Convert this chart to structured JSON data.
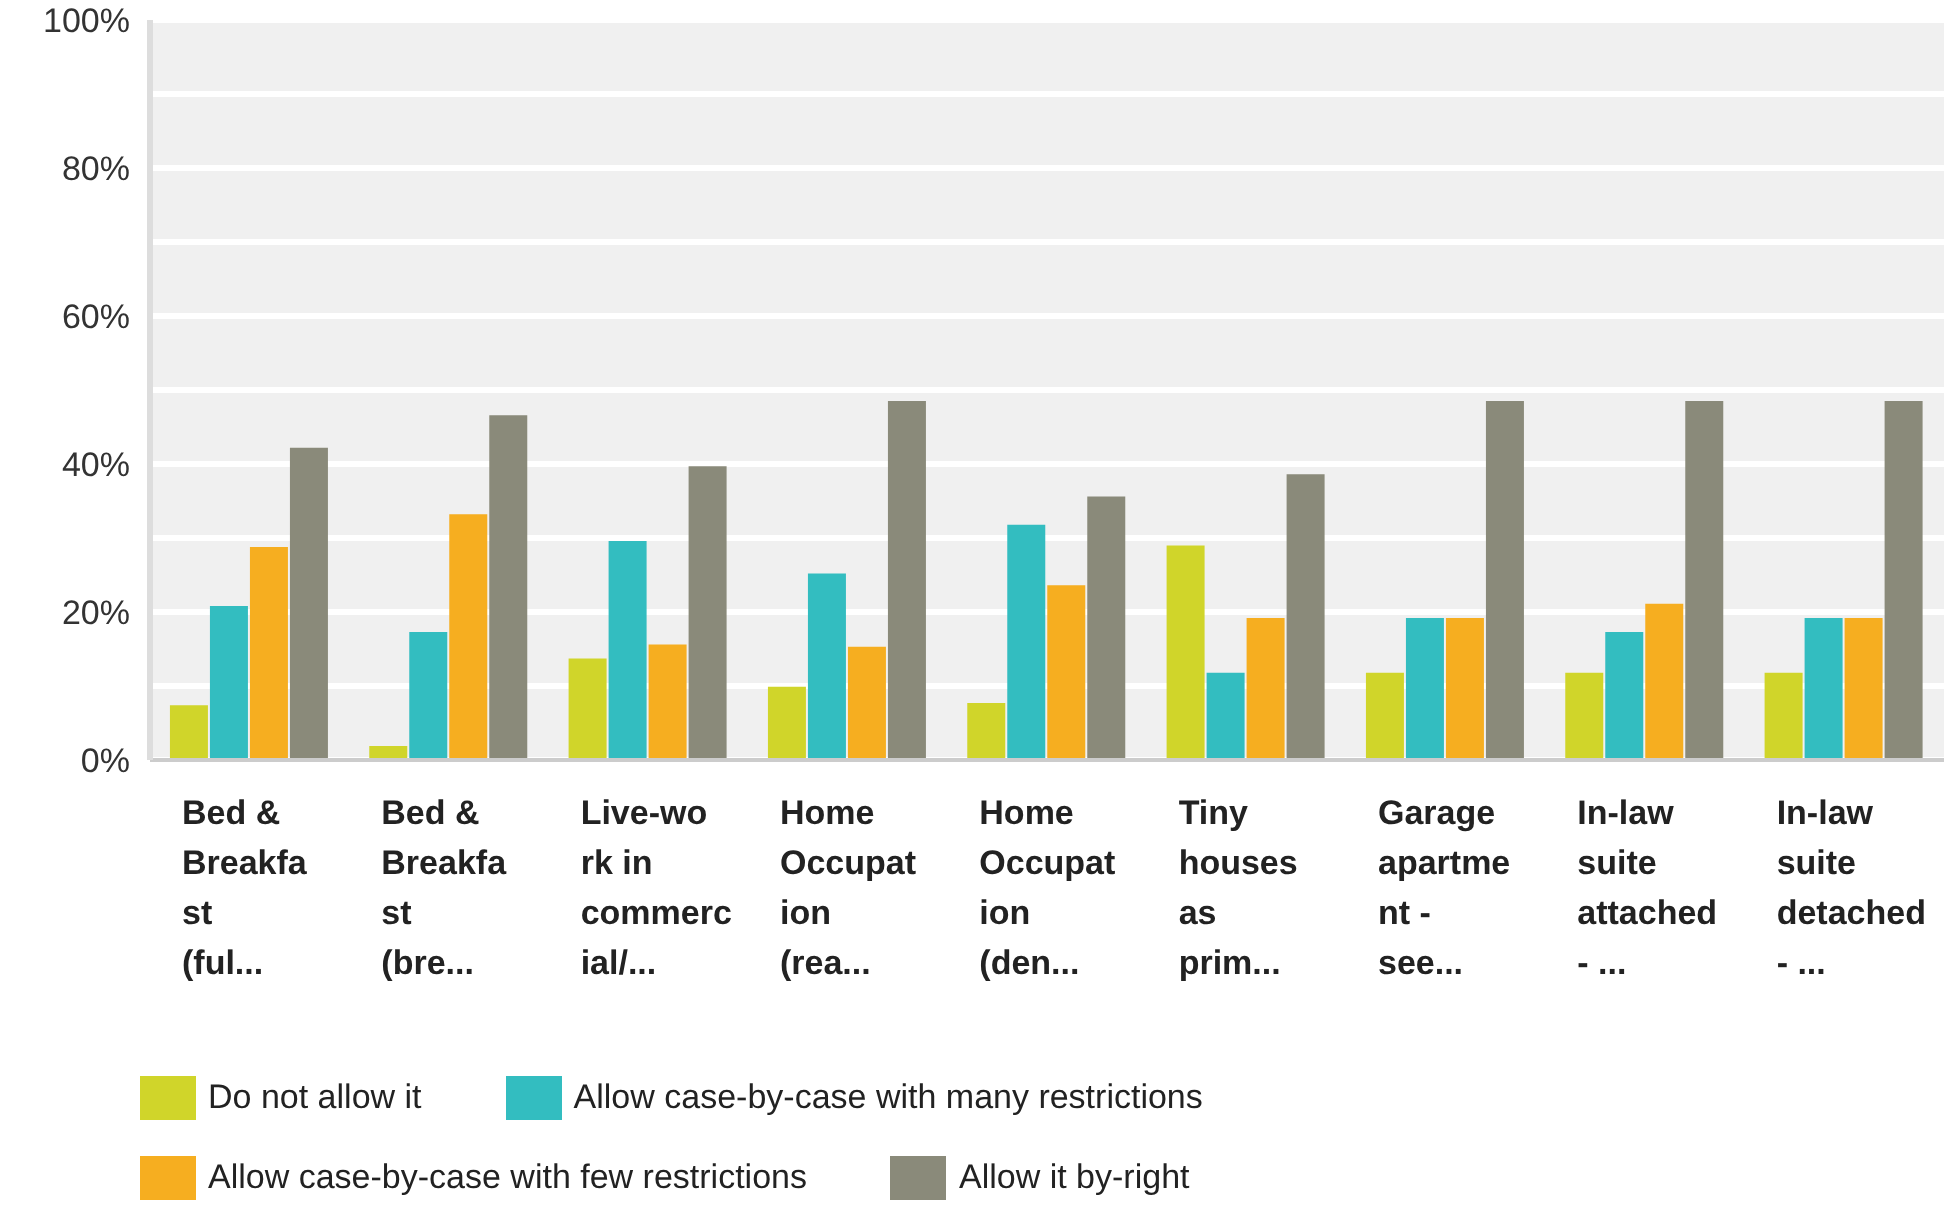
{
  "chart_data": {
    "type": "bar",
    "categories": [
      "Bed & Breakfast (ful...",
      "Bed & Breakfast (bre...",
      "Live-work in commercial/...",
      "Home Occupation (rea...",
      "Home Occupation (den...",
      "Tiny houses as prim...",
      "Garage apartment - see...",
      "In-law suite attached - ...",
      "In-law suite detached - ..."
    ],
    "series": [
      {
        "name": "Do not allow it",
        "color": "#d0d52a",
        "values": [
          7.4,
          1.9,
          13.7,
          9.9,
          7.7,
          29.0,
          11.8,
          11.8,
          11.8
        ]
      },
      {
        "name": "Allow case-by-case with many restrictions",
        "color": "#33bdc0",
        "values": [
          20.8,
          17.3,
          29.6,
          25.2,
          31.8,
          11.8,
          19.2,
          17.3,
          19.2
        ]
      },
      {
        "name": "Allow case-by-case with few restrictions",
        "color": "#f6ae20",
        "values": [
          28.8,
          33.2,
          15.6,
          15.3,
          23.6,
          19.2,
          19.2,
          21.1,
          19.2
        ]
      },
      {
        "name": "Allow it by-right",
        "color": "#8a8a7a",
        "values": [
          42.2,
          46.6,
          39.7,
          48.5,
          35.6,
          38.6,
          48.5,
          48.5,
          48.5
        ]
      }
    ],
    "ylim": [
      0,
      100
    ],
    "yticks": [
      {
        "value": 0,
        "label": "0%"
      },
      {
        "value": 10,
        "label": null
      },
      {
        "value": 20,
        "label": "20%"
      },
      {
        "value": 30,
        "label": null
      },
      {
        "value": 40,
        "label": "40%"
      },
      {
        "value": 50,
        "label": null
      },
      {
        "value": 60,
        "label": "60%"
      },
      {
        "value": 70,
        "label": null
      },
      {
        "value": 80,
        "label": "80%"
      },
      {
        "value": 90,
        "label": null
      },
      {
        "value": 100,
        "label": "100%"
      }
    ],
    "grid": "y",
    "legend": "bottom"
  }
}
